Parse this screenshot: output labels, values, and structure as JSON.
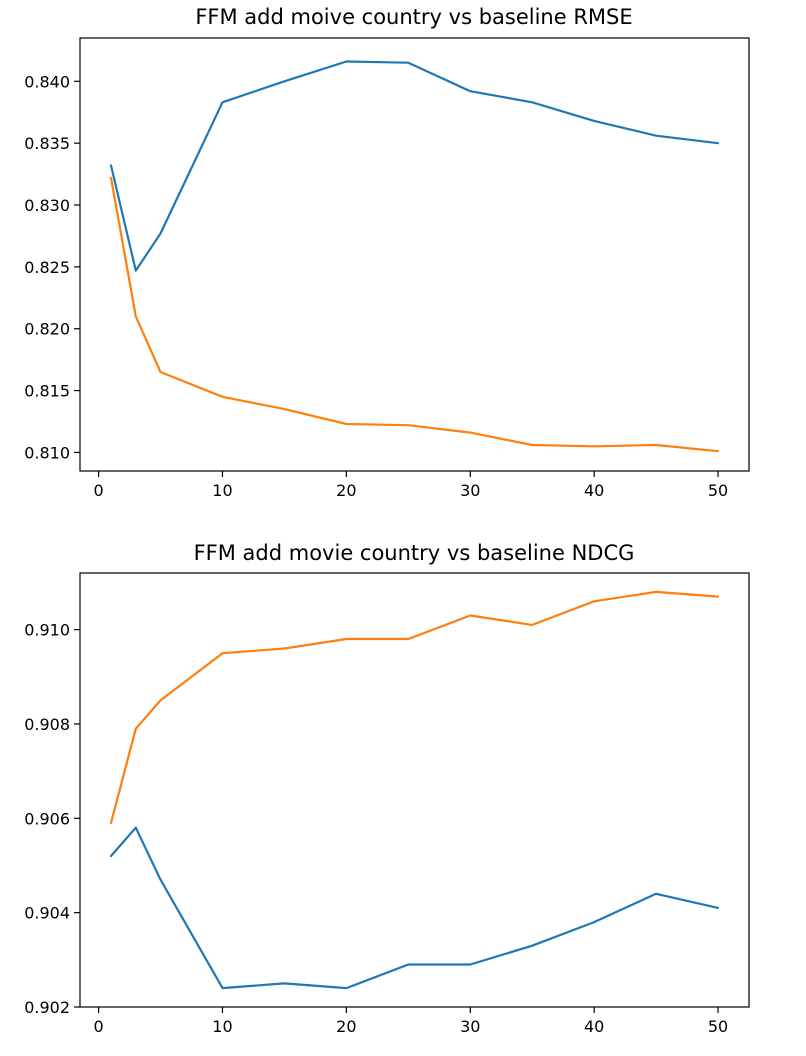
{
  "chart_data": [
    {
      "type": "line",
      "title": "FFM add moive country vs baseline RMSE",
      "xlabel": "",
      "ylabel": "",
      "xlim": [
        -1.5,
        52.5
      ],
      "ylim": [
        0.8085,
        0.8435
      ],
      "xticks": [
        0,
        10,
        20,
        30,
        40,
        50
      ],
      "xtick_labels": [
        "0",
        "10",
        "20",
        "30",
        "40",
        "50"
      ],
      "yticks": [
        0.81,
        0.815,
        0.82,
        0.825,
        0.83,
        0.835,
        0.84
      ],
      "ytick_labels": [
        "0.810",
        "0.815",
        "0.820",
        "0.825",
        "0.830",
        "0.835",
        "0.840"
      ],
      "grid": false,
      "x": [
        1,
        3,
        5,
        10,
        15,
        20,
        25,
        30,
        35,
        40,
        45,
        50
      ],
      "series": [
        {
          "color": "#1f77b4",
          "values": [
            0.8332,
            0.8247,
            0.8277,
            0.8383,
            0.84,
            0.8416,
            0.8415,
            0.8392,
            0.8383,
            0.8368,
            0.8356,
            0.835
          ]
        },
        {
          "color": "#ff7f0e",
          "values": [
            0.8322,
            0.821,
            0.8165,
            0.8145,
            0.8135,
            0.8123,
            0.8122,
            0.8116,
            0.8106,
            0.8105,
            0.8106,
            0.8101
          ]
        }
      ]
    },
    {
      "type": "line",
      "title": "FFM add movie country vs baseline NDCG",
      "xlabel": "",
      "ylabel": "",
      "xlim": [
        -1.5,
        52.5
      ],
      "ylim": [
        0.902,
        0.9112
      ],
      "xticks": [
        0,
        10,
        20,
        30,
        40,
        50
      ],
      "xtick_labels": [
        "0",
        "10",
        "20",
        "30",
        "40",
        "50"
      ],
      "yticks": [
        0.902,
        0.904,
        0.906,
        0.908,
        0.91
      ],
      "ytick_labels": [
        "0.902",
        "0.904",
        "0.906",
        "0.908",
        "0.910"
      ],
      "grid": false,
      "x": [
        1,
        3,
        5,
        10,
        15,
        20,
        25,
        30,
        35,
        40,
        45,
        50
      ],
      "series": [
        {
          "color": "#1f77b4",
          "values": [
            0.9052,
            0.9058,
            0.9047,
            0.9024,
            0.9025,
            0.9024,
            0.9029,
            0.9029,
            0.9033,
            0.9038,
            0.9044,
            0.9041
          ]
        },
        {
          "color": "#ff7f0e",
          "values": [
            0.9059,
            0.9079,
            0.9085,
            0.9095,
            0.9096,
            0.9098,
            0.9098,
            0.9103,
            0.9101,
            0.9106,
            0.9108,
            0.9107
          ]
        }
      ]
    }
  ]
}
